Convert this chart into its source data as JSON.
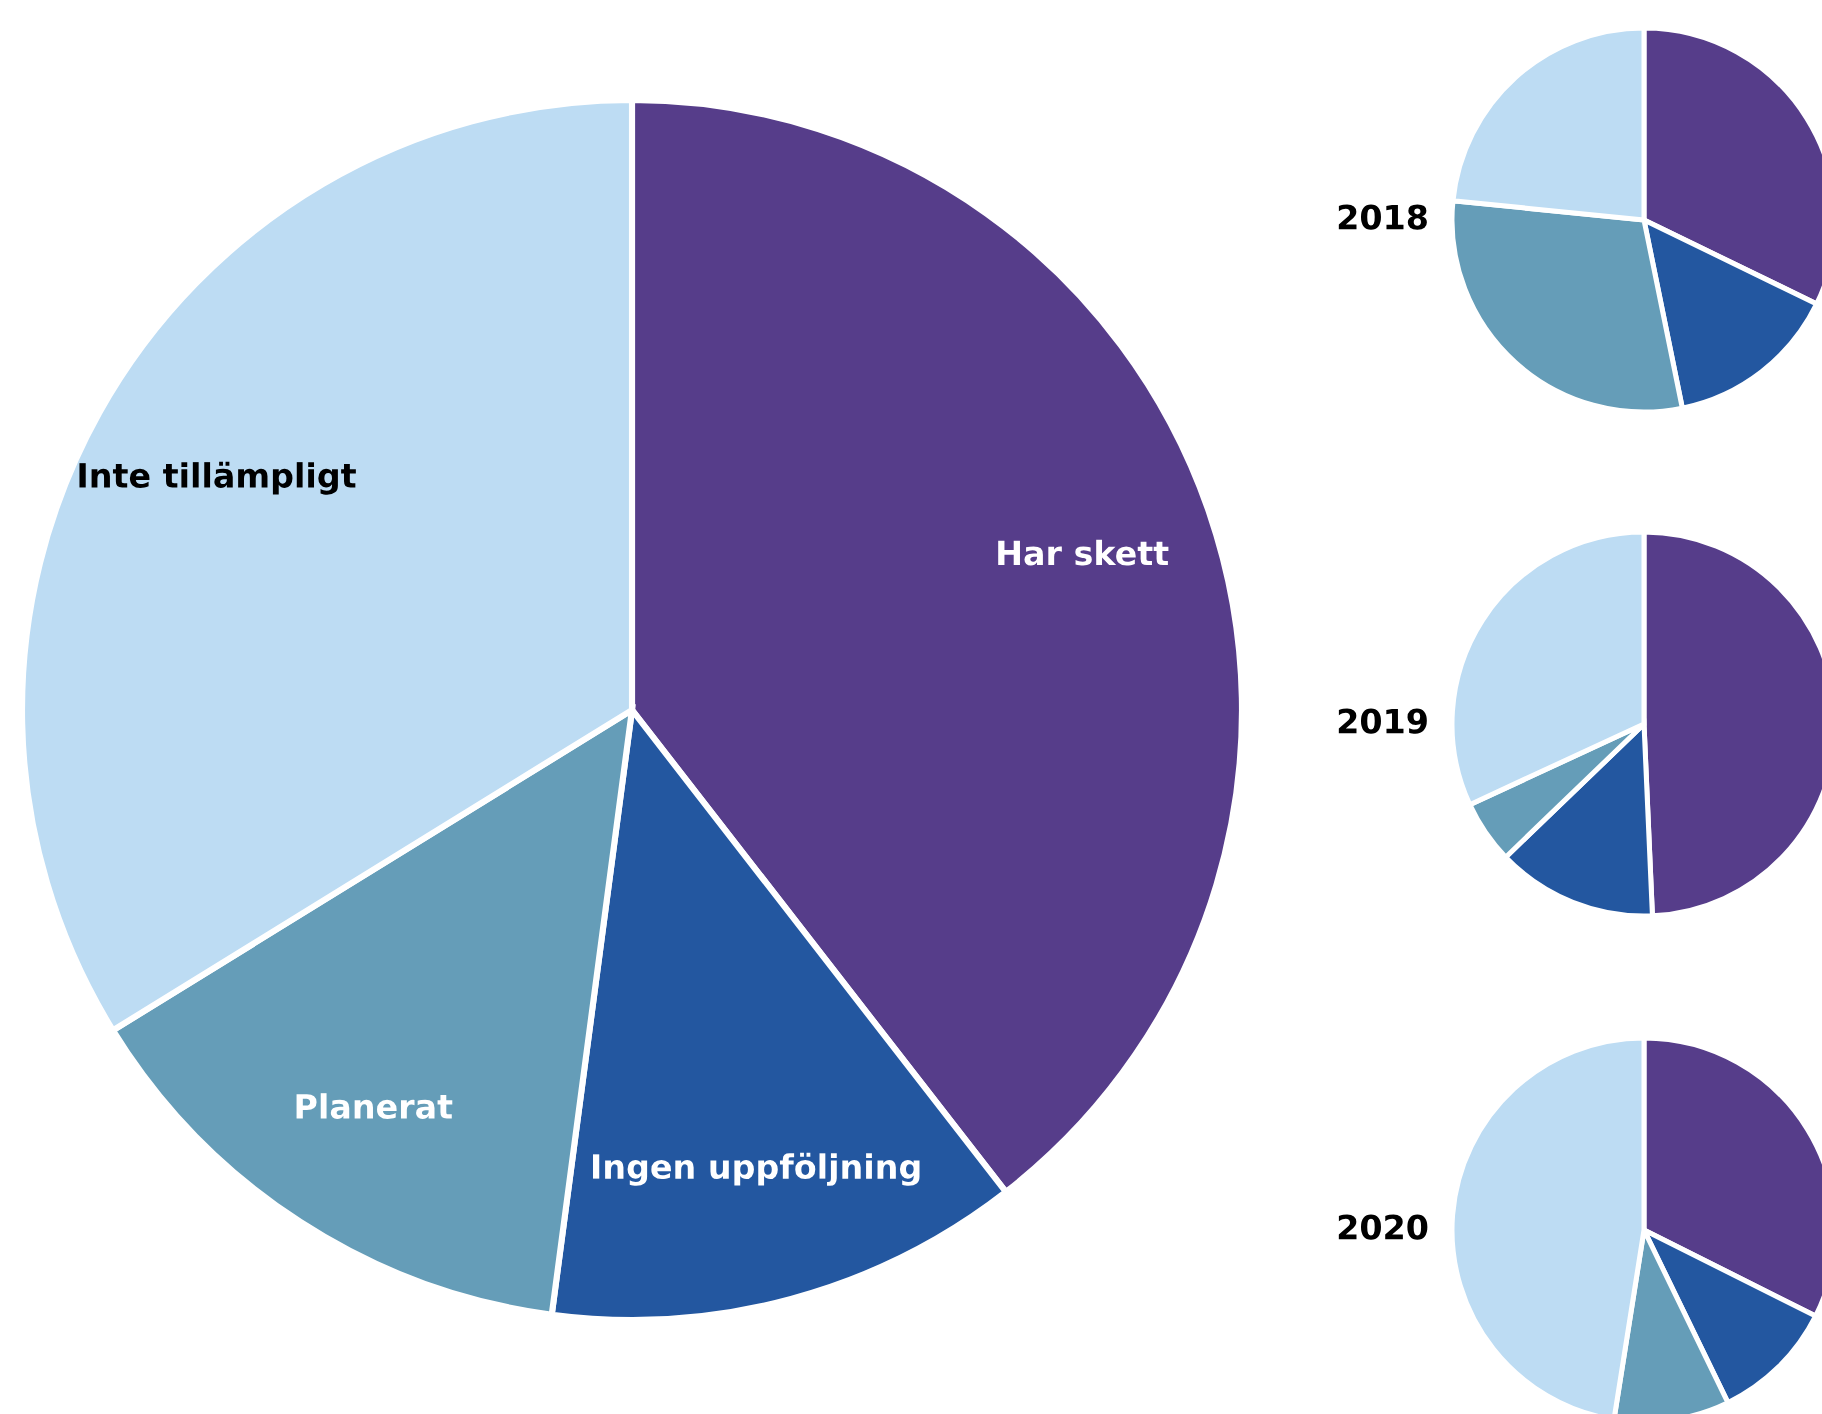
{
  "chart_data": [
    {
      "type": "pie",
      "categories": [
        "Har skett",
        "Ingen uppföljning",
        "Planerat",
        "Inte tillämpligt"
      ],
      "values": [
        39.5,
        12.6,
        14.1,
        33.8
      ],
      "colors": [
        "#563d8a",
        "#2357a0",
        "#659db8",
        "#bddcf3"
      ]
    },
    {
      "type": "pie",
      "title": "2018",
      "categories": [
        null,
        null,
        null,
        null
      ],
      "values": [
        32.2,
        14.6,
        29.8,
        23.4
      ],
      "colors": [
        "#563d8a",
        "#2357a0",
        "#659db8",
        "#bddcf3"
      ]
    },
    {
      "type": "pie",
      "title": "2019",
      "categories": [
        null,
        null,
        null,
        null
      ],
      "values": [
        49.3,
        13.5,
        5.3,
        31.9
      ],
      "colors": [
        "#563d8a",
        "#2357a0",
        "#659db8",
        "#bddcf3"
      ]
    },
    {
      "type": "pie",
      "title": "2020",
      "categories": [
        null,
        null,
        null,
        null
      ],
      "values": [
        32.4,
        10.4,
        9.7,
        47.5
      ],
      "colors": [
        "#563d8a",
        "#2357a0",
        "#659db8",
        "#bddcf3"
      ]
    }
  ]
}
